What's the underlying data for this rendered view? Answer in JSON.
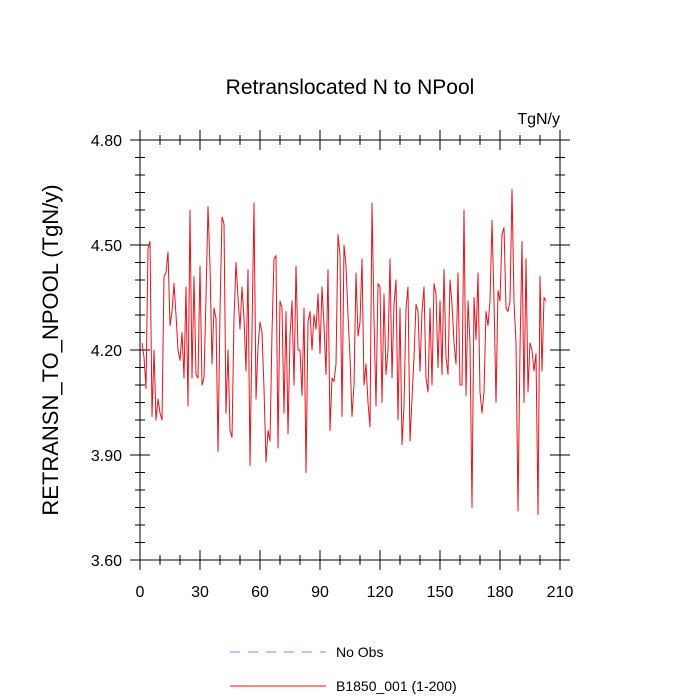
{
  "chart_data": {
    "type": "line",
    "title": "Retranslocated N to NPool",
    "units": "TgN/y",
    "ylabel": "RETRANSN_TO_NPOOL  (TgN/y)",
    "xlabel": "",
    "xlim": [
      0,
      210
    ],
    "ylim": [
      3.6,
      4.8
    ],
    "xticks": [
      0,
      30,
      60,
      90,
      120,
      150,
      180,
      210
    ],
    "xtick_labels": [
      "0",
      "30",
      "60",
      "90",
      "120",
      "150",
      "180",
      "210"
    ],
    "yticks": [
      3.6,
      3.9,
      4.2,
      4.5,
      4.8
    ],
    "ytick_labels": [
      "3.60",
      "3.90",
      "4.20",
      "4.50",
      "4.80"
    ],
    "legend": [
      {
        "label": "No Obs",
        "style": "dashed",
        "color": "#8080ff"
      },
      {
        "label": "B1850_001 (1-200)",
        "style": "solid",
        "color": "#e8131b"
      }
    ],
    "series": [
      {
        "name": "B1850_001 (1-200)",
        "color": "#e8131b",
        "x_start": 1,
        "values": [
          4.22,
          4.18,
          4.09,
          4.49,
          4.51,
          4.01,
          4.2,
          4.0,
          4.06,
          4.02,
          4.0,
          4.41,
          4.42,
          4.48,
          4.27,
          4.31,
          4.39,
          4.3,
          4.2,
          4.17,
          4.25,
          4.12,
          4.38,
          4.04,
          4.6,
          4.12,
          4.41,
          4.13,
          4.12,
          4.44,
          4.1,
          4.12,
          4.35,
          4.61,
          4.44,
          4.16,
          4.32,
          4.29,
          3.91,
          4.31,
          4.58,
          4.56,
          4.02,
          4.2,
          3.97,
          3.95,
          4.29,
          4.45,
          4.35,
          4.26,
          4.38,
          4.29,
          4.14,
          4.43,
          3.87,
          4.25,
          4.62,
          4.06,
          4.21,
          4.28,
          4.25,
          4.09,
          3.88,
          3.97,
          3.94,
          4.25,
          4.46,
          4.47,
          3.92,
          4.34,
          4.32,
          4.02,
          4.31,
          3.96,
          4.24,
          4.34,
          4.1,
          4.44,
          4.2,
          4.2,
          4.07,
          4.32,
          3.85,
          4.28,
          4.31,
          4.2,
          4.3,
          4.26,
          4.36,
          4.19,
          4.38,
          4.27,
          4.13,
          4.43,
          3.97,
          4.12,
          4.11,
          4.16,
          4.53,
          4.47,
          4.01,
          4.5,
          4.44,
          4.3,
          4.18,
          4.01,
          4.1,
          4.42,
          4.24,
          4.28,
          4.46,
          4.1,
          4.16,
          4.05,
          3.98,
          4.62,
          4.29,
          4.04,
          4.39,
          4.38,
          4.05,
          4.36,
          4.13,
          4.2,
          4.46,
          4.12,
          4.33,
          4.4,
          4.0,
          4.32,
          3.93,
          4.04,
          4.32,
          4.38,
          3.94,
          4.06,
          4.18,
          4.33,
          4.31,
          4.14,
          4.31,
          4.38,
          4.12,
          4.08,
          4.32,
          4.1,
          4.39,
          4.36,
          4.15,
          4.34,
          4.13,
          4.43,
          4.18,
          4.13,
          4.4,
          4.33,
          4.22,
          4.16,
          4.42,
          4.1,
          4.1,
          4.6,
          4.07,
          4.34,
          4.22,
          3.75,
          4.35,
          4.23,
          4.42,
          4.08,
          4.02,
          4.08,
          4.31,
          4.27,
          4.34,
          4.57,
          4.34,
          4.05,
          4.37,
          4.34,
          4.53,
          4.55,
          4.32,
          4.31,
          4.34,
          4.66,
          4.34,
          4.22,
          3.74,
          4.2,
          4.51,
          4.05,
          4.46,
          4.08,
          4.22,
          4.2,
          4.14,
          4.19,
          3.73,
          4.41,
          4.14,
          4.35,
          4.34
        ]
      }
    ]
  }
}
